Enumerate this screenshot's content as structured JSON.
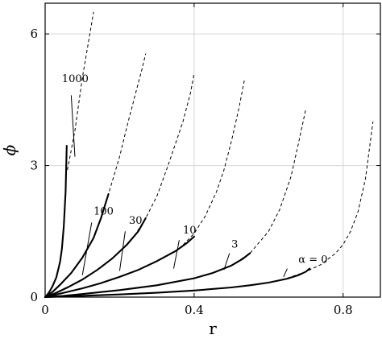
{
  "chart_data": {
    "type": "line",
    "xlabel": "r",
    "ylabel": "ϕ",
    "xlim": [
      0,
      0.9
    ],
    "ylim": [
      0,
      6.7
    ],
    "xticks": [
      0,
      0.4,
      0.8
    ],
    "xtick_labels": [
      "0",
      "0.4",
      "0.8"
    ],
    "yticks": [
      0,
      3,
      6
    ],
    "ytick_labels": [
      "0",
      "3",
      "6"
    ],
    "grid": true,
    "series": [
      {
        "name": "α = 0",
        "solid": {
          "x": [
            0,
            0.1,
            0.2,
            0.3,
            0.4,
            0.5,
            0.55,
            0.6,
            0.65,
            0.68,
            0.7,
            0.71
          ],
          "y": [
            0,
            0.03,
            0.06,
            0.1,
            0.15,
            0.22,
            0.27,
            0.33,
            0.42,
            0.5,
            0.58,
            0.65
          ]
        },
        "dashed": {
          "x": [
            0.65,
            0.7,
            0.74,
            0.78,
            0.8,
            0.82,
            0.84,
            0.86,
            0.88
          ],
          "y": [
            0.43,
            0.58,
            0.74,
            1.0,
            1.2,
            1.5,
            1.95,
            2.7,
            4.0
          ]
        }
      },
      {
        "name": "3",
        "solid": {
          "x": [
            0,
            0.05,
            0.1,
            0.2,
            0.3,
            0.4,
            0.45,
            0.5,
            0.53,
            0.55
          ],
          "y": [
            0,
            0.03,
            0.07,
            0.16,
            0.27,
            0.43,
            0.55,
            0.72,
            0.87,
            1.0
          ]
        },
        "dashed": {
          "x": [
            0.5,
            0.55,
            0.6,
            0.63,
            0.66,
            0.68,
            0.7
          ],
          "y": [
            0.72,
            1.0,
            1.5,
            2.0,
            2.75,
            3.5,
            4.3
          ]
        }
      },
      {
        "name": "10",
        "solid": {
          "x": [
            0,
            0.05,
            0.1,
            0.15,
            0.2,
            0.25,
            0.3,
            0.35,
            0.38,
            0.4
          ],
          "y": [
            0,
            0.1,
            0.2,
            0.32,
            0.46,
            0.62,
            0.82,
            1.05,
            1.23,
            1.38
          ]
        },
        "dashed": {
          "x": [
            0.36,
            0.4,
            0.43,
            0.46,
            0.48,
            0.5,
            0.52,
            0.535
          ],
          "y": [
            1.1,
            1.45,
            1.85,
            2.4,
            2.9,
            3.55,
            4.3,
            4.95
          ]
        }
      },
      {
        "name": "30",
        "solid": {
          "x": [
            0,
            0.03,
            0.06,
            0.1,
            0.14,
            0.18,
            0.22,
            0.25,
            0.27
          ],
          "y": [
            0,
            0.1,
            0.22,
            0.4,
            0.62,
            0.88,
            1.2,
            1.5,
            1.8
          ]
        },
        "dashed": {
          "x": [
            0.24,
            0.27,
            0.3,
            0.33,
            0.35,
            0.37,
            0.39,
            0.4
          ],
          "y": [
            1.4,
            1.8,
            2.3,
            3.0,
            3.5,
            4.0,
            4.65,
            5.1
          ]
        }
      },
      {
        "name": "100",
        "solid": {
          "x": [
            0,
            0.02,
            0.04,
            0.07,
            0.1,
            0.13,
            0.15,
            0.17
          ],
          "y": [
            0,
            0.12,
            0.28,
            0.55,
            0.9,
            1.35,
            1.8,
            2.35
          ]
        },
        "dashed": {
          "x": [
            0.15,
            0.17,
            0.2,
            0.22,
            0.24,
            0.26,
            0.27
          ],
          "y": [
            1.8,
            2.35,
            3.2,
            3.9,
            4.55,
            5.2,
            5.55
          ]
        }
      },
      {
        "name": "1000",
        "solid": {
          "x": [
            0,
            0.01,
            0.02,
            0.03,
            0.04,
            0.045,
            0.05,
            0.055,
            0.058
          ],
          "y": [
            0,
            0.1,
            0.25,
            0.45,
            0.8,
            1.1,
            1.6,
            2.4,
            3.45
          ]
        },
        "dashed": {
          "x": [
            0.06,
            0.08,
            0.09,
            0.1,
            0.11,
            0.12,
            0.13
          ],
          "y": [
            2.9,
            3.8,
            4.4,
            5.0,
            5.5,
            6.0,
            6.5
          ]
        }
      }
    ],
    "annotations": [
      {
        "text": "1000",
        "x": 0.045,
        "y": 4.9,
        "pointer": [
          [
            0.07,
            4.6
          ],
          [
            0.08,
            3.2
          ]
        ]
      },
      {
        "text": "100",
        "x": 0.13,
        "y": 1.88,
        "pointer": [
          [
            0.125,
            1.7
          ],
          [
            0.1,
            0.5
          ]
        ]
      },
      {
        "text": "30",
        "x": 0.225,
        "y": 1.67,
        "pointer": [
          [
            0.215,
            1.5
          ],
          [
            0.2,
            0.6
          ]
        ]
      },
      {
        "text": "10",
        "x": 0.37,
        "y": 1.45,
        "pointer": [
          [
            0.36,
            1.3
          ],
          [
            0.345,
            0.65
          ]
        ]
      },
      {
        "text": "3",
        "x": 0.5,
        "y": 1.13,
        "pointer": [
          [
            0.495,
            1.0
          ],
          [
            0.48,
            0.62
          ]
        ]
      },
      {
        "text": "α = 0",
        "x": 0.68,
        "y": 0.78,
        "pointer": [
          [
            0.65,
            0.65
          ],
          [
            0.64,
            0.46
          ]
        ]
      }
    ]
  }
}
